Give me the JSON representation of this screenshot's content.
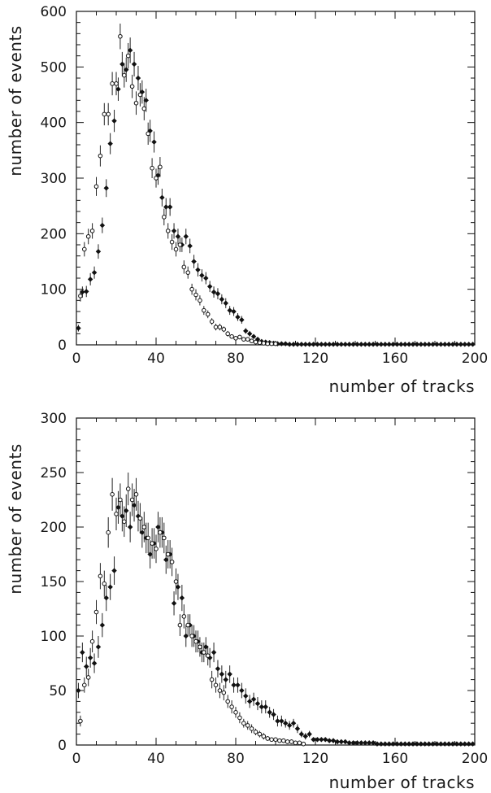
{
  "chart_data": [
    {
      "type": "scatter",
      "xlabel": "number of tracks",
      "ylabel": "number of events",
      "xlim": [
        0,
        200
      ],
      "ylim": [
        0,
        600
      ],
      "xticks": [
        0,
        40,
        80,
        120,
        160,
        200
      ],
      "yticks": [
        0,
        100,
        200,
        300,
        400,
        500,
        600
      ],
      "grid": false,
      "series": [
        {
          "marker": "filled-diamond",
          "color": "#000000",
          "x": [
            1,
            3,
            5,
            7,
            9,
            11,
            13,
            15,
            17,
            19,
            21,
            23,
            25,
            27,
            29,
            31,
            33,
            35,
            37,
            39,
            41,
            43,
            45,
            47,
            49,
            51,
            53,
            55,
            57,
            59,
            61,
            63,
            65,
            67,
            69,
            71,
            73,
            75,
            77,
            79,
            81,
            83,
            85,
            87,
            89,
            91,
            93,
            95,
            97,
            99,
            101,
            103,
            105,
            107,
            109,
            111,
            113,
            115,
            117,
            119,
            121,
            123,
            125,
            127,
            129,
            131,
            133,
            135,
            137,
            139,
            141,
            143,
            145,
            147,
            149,
            151,
            153,
            155,
            157,
            159,
            161,
            163,
            165,
            167,
            169,
            171,
            173,
            175,
            177,
            179,
            181,
            183,
            185,
            187,
            189,
            191,
            193,
            195,
            197,
            199
          ],
          "y": [
            30,
            95,
            96,
            118,
            130,
            168,
            215,
            282,
            362,
            403,
            460,
            505,
            495,
            530,
            505,
            480,
            455,
            440,
            385,
            365,
            305,
            265,
            248,
            248,
            205,
            195,
            180,
            195,
            178,
            150,
            135,
            125,
            120,
            105,
            95,
            92,
            82,
            75,
            62,
            60,
            50,
            45,
            25,
            20,
            15,
            10,
            6,
            5,
            4,
            3,
            2,
            2,
            2,
            1,
            1,
            1,
            1,
            1,
            1,
            1,
            1,
            1,
            1,
            1,
            1,
            1,
            1,
            1,
            1,
            1,
            1,
            1,
            1,
            1,
            1,
            1,
            1,
            1,
            1,
            1,
            1,
            1,
            1,
            1,
            1,
            1,
            1,
            1,
            1,
            1,
            1,
            1,
            1,
            1,
            1,
            1,
            1,
            1,
            1,
            1
          ],
          "err": [
            6,
            10,
            10,
            11,
            11,
            13,
            14,
            16,
            19,
            20,
            21,
            22,
            22,
            23,
            22,
            22,
            21,
            21,
            20,
            19,
            17,
            16,
            16,
            16,
            14,
            14,
            13,
            14,
            13,
            12,
            12,
            11,
            11,
            10,
            10,
            10,
            9,
            9,
            8,
            8,
            7,
            7,
            5,
            5,
            4,
            3,
            3,
            2,
            2,
            2,
            1,
            1,
            1,
            1,
            1,
            1,
            1,
            1,
            1,
            1,
            1,
            1,
            1,
            1,
            1,
            1,
            1,
            1,
            1,
            1,
            1,
            1,
            1,
            1,
            1,
            1,
            1,
            1,
            1,
            1,
            1,
            1,
            1,
            1,
            1,
            1,
            1,
            1,
            1,
            1,
            1,
            1,
            1,
            1,
            1,
            1,
            1,
            1,
            1,
            1
          ]
        },
        {
          "marker": "open-circle",
          "color": "#000000",
          "x": [
            2,
            4,
            6,
            8,
            10,
            12,
            14,
            16,
            18,
            20,
            22,
            24,
            26,
            28,
            30,
            32,
            34,
            36,
            38,
            40,
            42,
            44,
            46,
            48,
            50,
            52,
            54,
            56,
            58,
            60,
            62,
            64,
            66,
            68,
            70,
            72,
            74,
            76,
            78,
            80,
            82,
            84,
            86,
            88,
            90,
            92,
            94,
            96,
            98,
            100
          ],
          "y": [
            88,
            172,
            195,
            205,
            285,
            340,
            415,
            415,
            470,
            470,
            555,
            485,
            520,
            465,
            435,
            450,
            425,
            380,
            318,
            300,
            320,
            230,
            205,
            185,
            172,
            180,
            140,
            130,
            100,
            90,
            80,
            62,
            55,
            42,
            32,
            32,
            28,
            20,
            15,
            12,
            14,
            10,
            10,
            7,
            5,
            4,
            3,
            2,
            2,
            2
          ],
          "err": [
            10,
            13,
            14,
            14,
            17,
            19,
            20,
            20,
            21,
            21,
            23,
            22,
            23,
            21,
            21,
            21,
            21,
            20,
            18,
            17,
            18,
            15,
            14,
            14,
            13,
            13,
            12,
            11,
            10,
            10,
            9,
            8,
            7,
            6,
            6,
            6,
            5,
            5,
            4,
            4,
            4,
            3,
            3,
            3,
            2,
            2,
            2,
            1,
            1,
            1
          ]
        }
      ]
    },
    {
      "type": "scatter",
      "xlabel": "number of tracks",
      "ylabel": "number of events",
      "xlim": [
        0,
        200
      ],
      "ylim": [
        0,
        300
      ],
      "xticks": [
        0,
        40,
        80,
        120,
        160,
        200
      ],
      "yticks": [
        0,
        50,
        100,
        150,
        200,
        250,
        300
      ],
      "grid": false,
      "series": [
        {
          "marker": "filled-diamond",
          "color": "#000000",
          "x": [
            1,
            3,
            5,
            7,
            9,
            11,
            13,
            15,
            17,
            19,
            21,
            23,
            25,
            27,
            29,
            31,
            33,
            35,
            37,
            39,
            41,
            43,
            45,
            47,
            49,
            51,
            53,
            55,
            57,
            59,
            61,
            63,
            65,
            67,
            69,
            71,
            73,
            75,
            77,
            79,
            81,
            83,
            85,
            87,
            89,
            91,
            93,
            95,
            97,
            99,
            101,
            103,
            105,
            107,
            109,
            111,
            113,
            115,
            117,
            119,
            121,
            123,
            125,
            127,
            129,
            131,
            133,
            135,
            137,
            139,
            141,
            143,
            145,
            147,
            149,
            151,
            153,
            155,
            157,
            159,
            161,
            163,
            165,
            167,
            169,
            171,
            173,
            175,
            177,
            179,
            181,
            183,
            185,
            187,
            189,
            191,
            193,
            195,
            197,
            199
          ],
          "y": [
            50,
            85,
            72,
            80,
            75,
            90,
            110,
            135,
            145,
            160,
            218,
            210,
            215,
            200,
            220,
            210,
            195,
            190,
            175,
            185,
            200,
            195,
            170,
            175,
            130,
            145,
            135,
            100,
            110,
            100,
            95,
            85,
            90,
            80,
            85,
            70,
            65,
            60,
            65,
            55,
            55,
            50,
            45,
            40,
            42,
            38,
            35,
            35,
            30,
            28,
            22,
            22,
            20,
            18,
            20,
            15,
            10,
            8,
            10,
            5,
            5,
            5,
            5,
            4,
            4,
            3,
            3,
            3,
            2,
            2,
            2,
            2,
            2,
            2,
            2,
            1,
            1,
            1,
            1,
            1,
            1,
            1,
            1,
            1,
            1,
            1,
            1,
            1,
            1,
            1,
            1,
            1,
            1,
            1,
            1,
            1,
            1,
            1,
            1,
            1
          ],
          "err": [
            7,
            9,
            9,
            9,
            9,
            10,
            11,
            12,
            12,
            13,
            15,
            14,
            15,
            14,
            15,
            14,
            14,
            14,
            13,
            14,
            14,
            14,
            13,
            13,
            11,
            12,
            12,
            10,
            10,
            10,
            10,
            9,
            9,
            9,
            9,
            8,
            8,
            8,
            8,
            7,
            7,
            7,
            7,
            6,
            6,
            6,
            6,
            6,
            5,
            5,
            5,
            5,
            4,
            4,
            4,
            4,
            3,
            3,
            3,
            2,
            2,
            2,
            2,
            2,
            2,
            2,
            2,
            2,
            1,
            1,
            1,
            1,
            1,
            1,
            1,
            1,
            1,
            1,
            1,
            1,
            1,
            1,
            1,
            1,
            1,
            1,
            1,
            1,
            1,
            1,
            1,
            1,
            1,
            1,
            1,
            1,
            1,
            1,
            1,
            1
          ]
        },
        {
          "marker": "open-circle",
          "color": "#000000",
          "x": [
            2,
            4,
            6,
            8,
            10,
            12,
            14,
            16,
            18,
            20,
            22,
            24,
            26,
            28,
            30,
            32,
            34,
            36,
            38,
            40,
            42,
            44,
            46,
            48,
            50,
            52,
            54,
            56,
            58,
            60,
            62,
            64,
            66,
            68,
            70,
            72,
            74,
            76,
            78,
            80,
            82,
            84,
            86,
            88,
            90,
            92,
            94,
            96,
            98,
            100,
            102,
            104,
            106,
            108,
            110,
            112,
            114
          ],
          "y": [
            22,
            55,
            62,
            95,
            122,
            155,
            148,
            195,
            230,
            212,
            225,
            205,
            235,
            225,
            230,
            208,
            200,
            190,
            185,
            180,
            195,
            190,
            175,
            168,
            150,
            110,
            118,
            110,
            100,
            95,
            90,
            85,
            82,
            60,
            55,
            50,
            48,
            40,
            35,
            30,
            25,
            20,
            18,
            15,
            12,
            10,
            8,
            6,
            5,
            5,
            4,
            4,
            3,
            3,
            2,
            2,
            1
          ],
          "err": [
            5,
            7,
            8,
            10,
            11,
            12,
            12,
            14,
            15,
            15,
            15,
            14,
            15,
            15,
            15,
            14,
            14,
            14,
            14,
            13,
            14,
            14,
            13,
            13,
            12,
            10,
            11,
            10,
            10,
            10,
            9,
            9,
            9,
            8,
            7,
            7,
            7,
            6,
            6,
            5,
            5,
            4,
            4,
            4,
            3,
            3,
            3,
            2,
            2,
            2,
            2,
            2,
            2,
            2,
            1,
            1,
            1
          ]
        }
      ]
    }
  ]
}
